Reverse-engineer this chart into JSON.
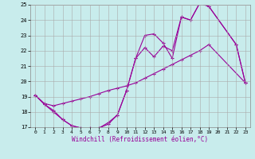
{
  "xlabel": "Windchill (Refroidissement éolien,°C)",
  "xlim": [
    -0.5,
    23.5
  ],
  "ylim": [
    17,
    25
  ],
  "xticks": [
    0,
    1,
    2,
    3,
    4,
    5,
    6,
    7,
    8,
    9,
    10,
    11,
    12,
    13,
    14,
    15,
    16,
    17,
    18,
    19,
    20,
    21,
    22,
    23
  ],
  "yticks": [
    17,
    18,
    19,
    20,
    21,
    22,
    23,
    24,
    25
  ],
  "bg_color": "#c8ecec",
  "line_color": "#990099",
  "grid_color": "#aaaaaa",
  "line1_x": [
    0,
    1,
    2,
    3,
    4,
    5,
    6,
    7,
    8,
    9,
    10,
    11,
    12,
    13,
    14,
    15,
    16,
    17,
    18,
    19,
    22,
    23
  ],
  "line1_y": [
    19.1,
    18.5,
    18.0,
    17.5,
    17.1,
    16.95,
    16.95,
    16.95,
    17.3,
    17.8,
    19.4,
    21.5,
    23.0,
    23.1,
    22.5,
    21.5,
    24.2,
    24.0,
    25.1,
    24.9,
    22.4,
    19.9
  ],
  "line2_x": [
    0,
    1,
    2,
    3,
    4,
    5,
    6,
    7,
    8,
    9,
    10,
    11,
    12,
    13,
    14,
    15,
    16,
    17,
    18,
    19,
    23
  ],
  "line2_y": [
    19.1,
    18.55,
    18.4,
    18.55,
    18.7,
    18.85,
    19.0,
    19.2,
    19.4,
    19.55,
    19.7,
    19.9,
    20.2,
    20.5,
    20.8,
    21.1,
    21.4,
    21.7,
    22.0,
    22.4,
    19.9
  ],
  "line3_x": [
    0,
    1,
    2,
    3,
    4,
    5,
    6,
    7,
    8,
    9,
    10,
    11,
    12,
    13,
    14,
    15,
    16,
    17,
    18,
    19,
    22,
    23
  ],
  "line3_y": [
    19.1,
    18.5,
    18.1,
    17.5,
    17.1,
    16.95,
    16.95,
    16.95,
    17.2,
    17.8,
    19.4,
    21.5,
    22.2,
    21.6,
    22.3,
    22.0,
    24.2,
    24.0,
    25.1,
    24.9,
    22.4,
    19.9
  ]
}
